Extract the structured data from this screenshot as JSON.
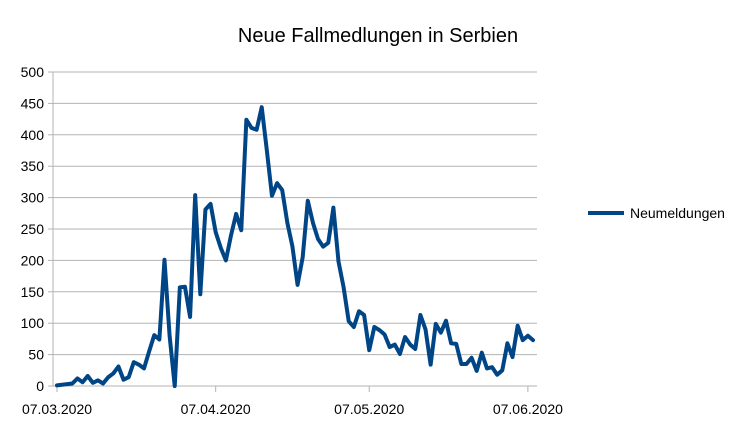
{
  "chart_data": {
    "type": "line",
    "title": "Neue Fallmedlungen in Serbien",
    "xlabel": "",
    "ylabel": "",
    "ylim": [
      0,
      500
    ],
    "yticks": [
      0,
      50,
      100,
      150,
      200,
      250,
      300,
      350,
      400,
      450,
      500
    ],
    "x_start": "07.03.2020",
    "x_tick_labels": [
      "07.03.2020",
      "07.04.2020",
      "07.05.2020",
      "07.06.2020"
    ],
    "x_tick_day_index": [
      0,
      31,
      61,
      92
    ],
    "grid": true,
    "legend_position": "right",
    "color": "#004586",
    "series": [
      {
        "name": "Neumeldungen",
        "values": [
          1,
          2,
          3,
          4,
          12,
          6,
          16,
          5,
          9,
          4,
          14,
          20,
          31,
          10,
          14,
          38,
          34,
          28,
          55,
          81,
          74,
          201,
          80,
          0,
          157,
          158,
          110,
          304,
          146,
          281,
          290,
          245,
          220,
          200,
          240,
          274,
          248,
          424,
          411,
          408,
          444,
          375,
          303,
          323,
          312,
          260,
          222,
          161,
          205,
          295,
          260,
          234,
          222,
          228,
          284,
          198,
          157,
          103,
          94,
          119,
          113,
          57,
          94,
          89,
          82,
          62,
          66,
          51,
          78,
          66,
          59,
          113,
          90,
          34,
          99,
          85,
          104,
          68,
          67,
          35,
          35,
          45,
          24,
          53,
          28,
          30,
          18,
          25,
          68,
          46,
          96,
          73,
          80,
          73
        ]
      }
    ]
  }
}
